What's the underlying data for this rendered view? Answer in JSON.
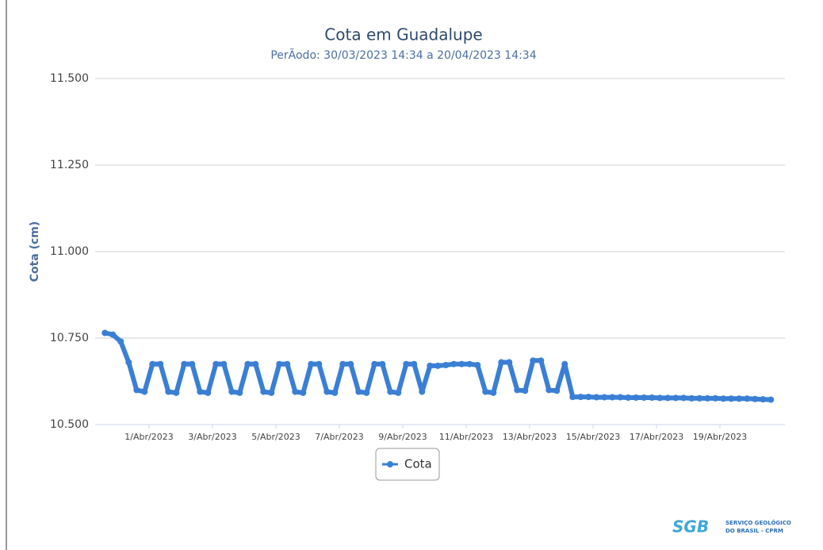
{
  "chart_data": {
    "type": "line",
    "title": "Cota em Guadalupe",
    "subtitle": "PerÃodo: 30/03/2023 14:34 a 20/04/2023 14:34",
    "y_label": "Cota (cm)",
    "logo": {
      "mark": "SGB",
      "line1": "SERVIÇO GEOLÓGICO",
      "line2": "DO BRASIL - CPRM"
    },
    "x": [
      "2023-03-30 14:34",
      "2023-03-30 20:34",
      "2023-03-31 02:34",
      "2023-03-31 08:34",
      "2023-03-31 14:34",
      "2023-03-31 20:34",
      "2023-04-01 02:34",
      "2023-04-01 08:34",
      "2023-04-01 14:34",
      "2023-04-01 20:34",
      "2023-04-02 02:34",
      "2023-04-02 08:34",
      "2023-04-02 14:34",
      "2023-04-02 20:34",
      "2023-04-03 02:34",
      "2023-04-03 08:34",
      "2023-04-03 14:34",
      "2023-04-03 20:34",
      "2023-04-04 02:34",
      "2023-04-04 08:34",
      "2023-04-04 14:34",
      "2023-04-04 20:34",
      "2023-04-05 02:34",
      "2023-04-05 08:34",
      "2023-04-05 14:34",
      "2023-04-05 20:34",
      "2023-04-06 02:34",
      "2023-04-06 08:34",
      "2023-04-06 14:34",
      "2023-04-06 20:34",
      "2023-04-07 02:34",
      "2023-04-07 08:34",
      "2023-04-07 14:34",
      "2023-04-07 20:34",
      "2023-04-08 02:34",
      "2023-04-08 08:34",
      "2023-04-08 14:34",
      "2023-04-08 20:34",
      "2023-04-09 02:34",
      "2023-04-09 08:34",
      "2023-04-09 14:34",
      "2023-04-09 20:34",
      "2023-04-10 02:34",
      "2023-04-10 08:34",
      "2023-04-10 14:34",
      "2023-04-10 20:34",
      "2023-04-11 02:34",
      "2023-04-11 08:34",
      "2023-04-11 14:34",
      "2023-04-11 20:34",
      "2023-04-12 02:34",
      "2023-04-12 08:34",
      "2023-04-12 14:34",
      "2023-04-12 20:34",
      "2023-04-13 02:34",
      "2023-04-13 08:34",
      "2023-04-13 14:34",
      "2023-04-13 20:34",
      "2023-04-14 02:34",
      "2023-04-14 08:34",
      "2023-04-14 14:34",
      "2023-04-14 20:34",
      "2023-04-15 02:34",
      "2023-04-15 08:34",
      "2023-04-15 14:34",
      "2023-04-15 20:34",
      "2023-04-16 02:34",
      "2023-04-16 08:34",
      "2023-04-16 14:34",
      "2023-04-16 20:34",
      "2023-04-17 02:34",
      "2023-04-17 08:34",
      "2023-04-17 14:34",
      "2023-04-17 20:34",
      "2023-04-18 02:34",
      "2023-04-18 08:34",
      "2023-04-18 14:34",
      "2023-04-18 20:34",
      "2023-04-19 02:34",
      "2023-04-19 08:34",
      "2023-04-19 14:34",
      "2023-04-19 20:34",
      "2023-04-20 02:34",
      "2023-04-20 08:34",
      "2023-04-20 14:34"
    ],
    "series": [
      {
        "name": "Cota",
        "color": "#3a7fd5",
        "values": [
          10.765,
          10.76,
          10.74,
          10.68,
          10.6,
          10.595,
          10.675,
          10.675,
          10.595,
          10.592,
          10.675,
          10.675,
          10.595,
          10.592,
          10.675,
          10.675,
          10.595,
          10.592,
          10.675,
          10.675,
          10.595,
          10.592,
          10.675,
          10.675,
          10.595,
          10.592,
          10.675,
          10.675,
          10.595,
          10.592,
          10.675,
          10.675,
          10.595,
          10.592,
          10.675,
          10.675,
          10.595,
          10.592,
          10.675,
          10.675,
          10.595,
          10.67,
          10.67,
          10.672,
          10.675,
          10.675,
          10.675,
          10.672,
          10.595,
          10.592,
          10.68,
          10.68,
          10.6,
          10.598,
          10.685,
          10.685,
          10.6,
          10.598,
          10.675,
          10.58,
          10.58,
          10.58,
          10.579,
          10.579,
          10.579,
          10.579,
          10.578,
          10.578,
          10.578,
          10.578,
          10.577,
          10.577,
          10.577,
          10.577,
          10.576,
          10.576,
          10.576,
          10.576,
          10.575,
          10.575,
          10.575,
          10.575,
          10.574,
          10.573,
          10.572
        ]
      }
    ],
    "xlim": [
      "2023-03-30 07:12",
      "2023-04-21 01:12"
    ],
    "xticks": [
      {
        "value": "2023-04-01",
        "label": "1/Abr/2023"
      },
      {
        "value": "2023-04-03",
        "label": "3/Abr/2023"
      },
      {
        "value": "2023-04-05",
        "label": "5/Abr/2023"
      },
      {
        "value": "2023-04-07",
        "label": "7/Abr/2023"
      },
      {
        "value": "2023-04-09",
        "label": "9/Abr/2023"
      },
      {
        "value": "2023-04-11",
        "label": "11/Abr/2023"
      },
      {
        "value": "2023-04-13",
        "label": "13/Abr/2023"
      },
      {
        "value": "2023-04-15",
        "label": "15/Abr/2023"
      },
      {
        "value": "2023-04-17",
        "label": "17/Abr/2023"
      },
      {
        "value": "2023-04-19",
        "label": "19/Abr/2023"
      }
    ],
    "ylim": [
      10.5,
      11.5
    ],
    "yticks": [
      {
        "value": 10.5,
        "label": "10.500"
      },
      {
        "value": 10.75,
        "label": "10.750"
      },
      {
        "value": 11,
        "label": "11.000"
      },
      {
        "value": 11.25,
        "label": "11.250"
      },
      {
        "value": 11.5,
        "label": "11.500"
      }
    ],
    "grid": true,
    "legend": "bottom"
  }
}
